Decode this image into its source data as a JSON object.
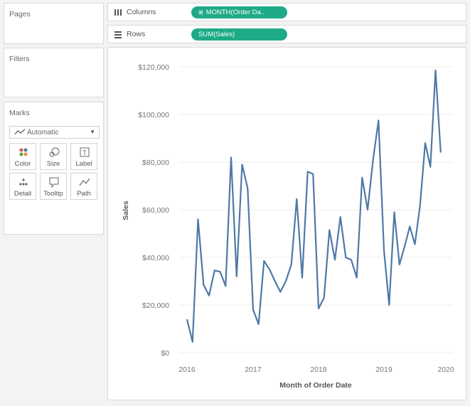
{
  "side_panel": {
    "pages_title": "Pages",
    "filters_title": "Filters",
    "marks_title": "Marks",
    "mark_type": "Automatic",
    "mark_buttons": [
      {
        "label": "Color",
        "icon": "color-dots-icon"
      },
      {
        "label": "Size",
        "icon": "size-icon"
      },
      {
        "label": "Label",
        "icon": "label-icon"
      },
      {
        "label": "Detail",
        "icon": "detail-icon"
      },
      {
        "label": "Tooltip",
        "icon": "tooltip-icon"
      },
      {
        "label": "Path",
        "icon": "path-icon"
      }
    ]
  },
  "shelves": {
    "columns_label": "Columns",
    "columns_pill": "MONTH(Order Da..",
    "columns_pill_prefix": "⊞",
    "rows_label": "Rows",
    "rows_pill": "SUM(Sales)"
  },
  "colors": {
    "pill": "#1eaa87",
    "line": "#4e79a7",
    "gridline": "#ececec"
  },
  "chart_data": {
    "type": "line",
    "xlabel": "Month of Order Date",
    "ylabel": "Sales",
    "ylim": [
      0,
      120000
    ],
    "yticks": [
      0,
      20000,
      40000,
      60000,
      80000,
      100000,
      120000
    ],
    "ytick_labels": [
      "$0",
      "$20,000",
      "$40,000",
      "$60,000",
      "$80,000",
      "$100,000",
      "$120,000"
    ],
    "xticks": [
      "2016",
      "2017",
      "2018",
      "2019",
      "2020"
    ],
    "grid": true,
    "series": [
      {
        "x": [
          "2016-01",
          "2016-02",
          "2016-03",
          "2016-04",
          "2016-05",
          "2016-06",
          "2016-07",
          "2016-08",
          "2016-09",
          "2016-10",
          "2016-11",
          "2016-12",
          "2017-01",
          "2017-02",
          "2017-03",
          "2017-04",
          "2017-05",
          "2017-06",
          "2017-07",
          "2017-08",
          "2017-09",
          "2017-10",
          "2017-11",
          "2017-12",
          "2018-01",
          "2018-02",
          "2018-03",
          "2018-04",
          "2018-05",
          "2018-06",
          "2018-07",
          "2018-08",
          "2018-09",
          "2018-10",
          "2018-11",
          "2018-12",
          "2019-01",
          "2019-02",
          "2019-03",
          "2019-04",
          "2019-05",
          "2019-06",
          "2019-07",
          "2019-08",
          "2019-09",
          "2019-10",
          "2019-11",
          "2019-12"
        ],
        "values": [
          14000,
          4500,
          56000,
          28500,
          24000,
          34500,
          34000,
          28000,
          82000,
          32000,
          79000,
          69000,
          18000,
          12000,
          38500,
          35000,
          30000,
          25500,
          30000,
          37000,
          64500,
          31500,
          76000,
          75000,
          18500,
          23000,
          51500,
          39000,
          57000,
          40000,
          39000,
          31500,
          73500,
          60000,
          81000,
          97500,
          43000,
          20000,
          59000,
          37000,
          44500,
          53000,
          45500,
          62000,
          88000,
          78000,
          118500,
          84000
        ]
      }
    ]
  }
}
